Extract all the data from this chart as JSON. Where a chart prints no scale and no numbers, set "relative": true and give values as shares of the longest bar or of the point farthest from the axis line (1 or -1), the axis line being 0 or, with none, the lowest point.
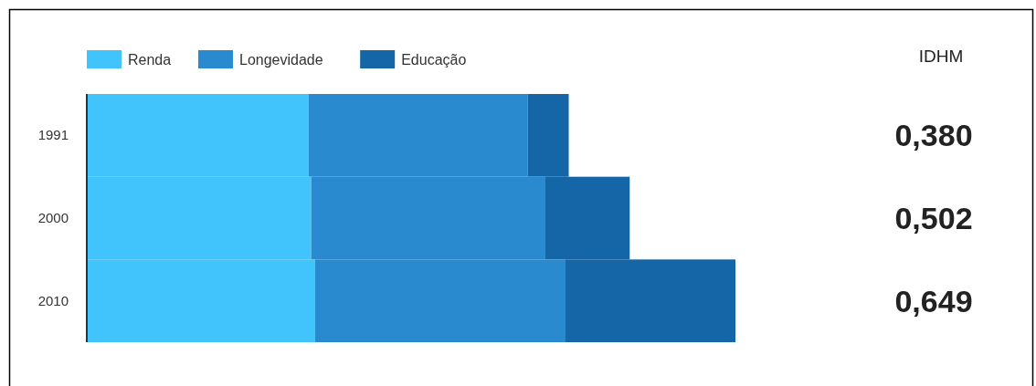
{
  "chart_data": {
    "type": "bar",
    "orientation": "horizontal",
    "stacked": true,
    "relative": true,
    "categories": [
      "1991",
      "2000",
      "2010"
    ],
    "series": [
      {
        "name": "Renda",
        "color": "#40c4fb",
        "values": [
          0.342,
          0.346,
          0.352
        ]
      },
      {
        "name": "Longevidade",
        "color": "#2a8ad0",
        "values": [
          0.338,
          0.361,
          0.386
        ]
      },
      {
        "name": "Educação",
        "color": "#1466a6",
        "values": [
          0.063,
          0.13,
          0.262
        ]
      }
    ],
    "annotations": [
      "IDHM",
      "0,380",
      "0,502",
      "0,649"
    ],
    "legend": "top left",
    "grid": false
  }
}
